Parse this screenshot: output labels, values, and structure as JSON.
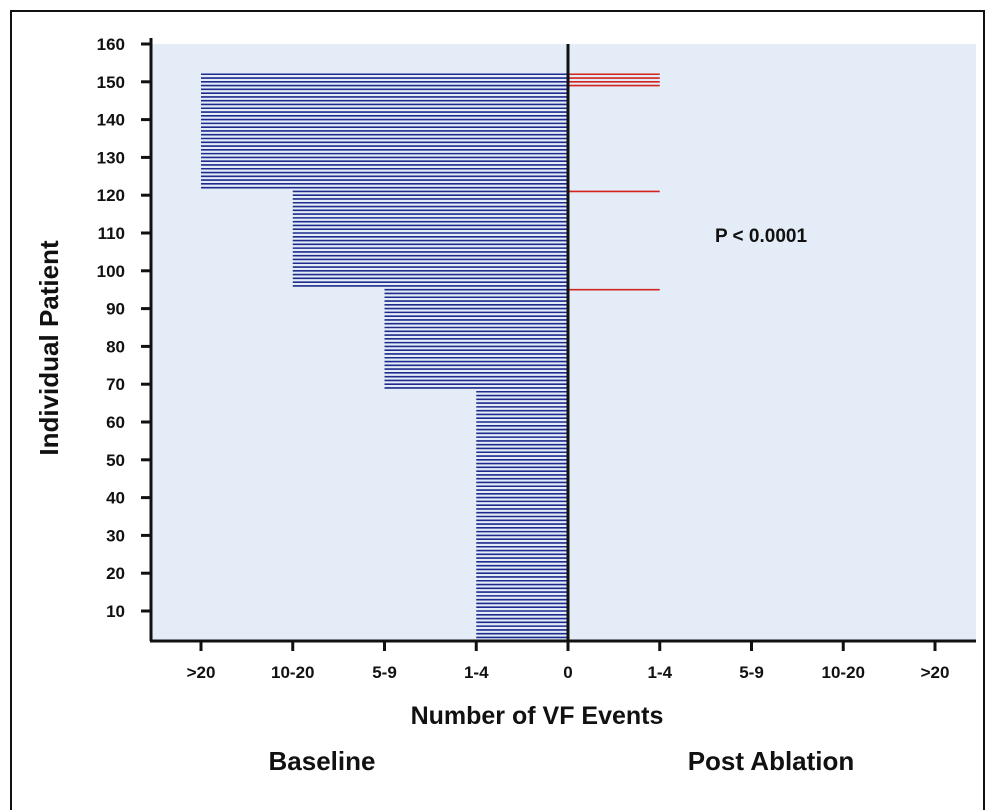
{
  "chart_data": {
    "type": "bar",
    "orientation": "horizontal",
    "ylabel": "Individual Patient",
    "xlabel": "Number of VF Events",
    "left_group_label": "Baseline",
    "right_group_label": "Post Ablation",
    "annotation": "P < 0.0001",
    "y_ticks": [
      "160",
      "150",
      "140",
      "130",
      "120",
      "110",
      "100",
      "90",
      "80",
      "70",
      "60",
      "50",
      "40",
      "30",
      "20",
      "10"
    ],
    "x_ticks": [
      ">20",
      "10-20",
      "5-9",
      "1-4",
      "0",
      "1-4",
      "5-9",
      "10-20",
      ">20"
    ],
    "ylim": [
      2,
      160
    ],
    "colors": {
      "baseline": "#1e2a8c",
      "post_ablation": "#d2241c",
      "background": "#e3ecf7"
    },
    "baseline": [
      {
        "category": "1-4",
        "patients_from": 2,
        "patients_to": 68
      },
      {
        "category": "5-9",
        "patients_from": 69,
        "patients_to": 95
      },
      {
        "category": "10-20",
        "patients_from": 96,
        "patients_to": 121
      },
      {
        "category": ">20",
        "patients_from": 122,
        "patients_to": 152
      }
    ],
    "post_ablation": [
      {
        "category": "1-4",
        "patients": [
          95,
          121,
          149,
          150,
          151,
          152
        ]
      }
    ]
  }
}
